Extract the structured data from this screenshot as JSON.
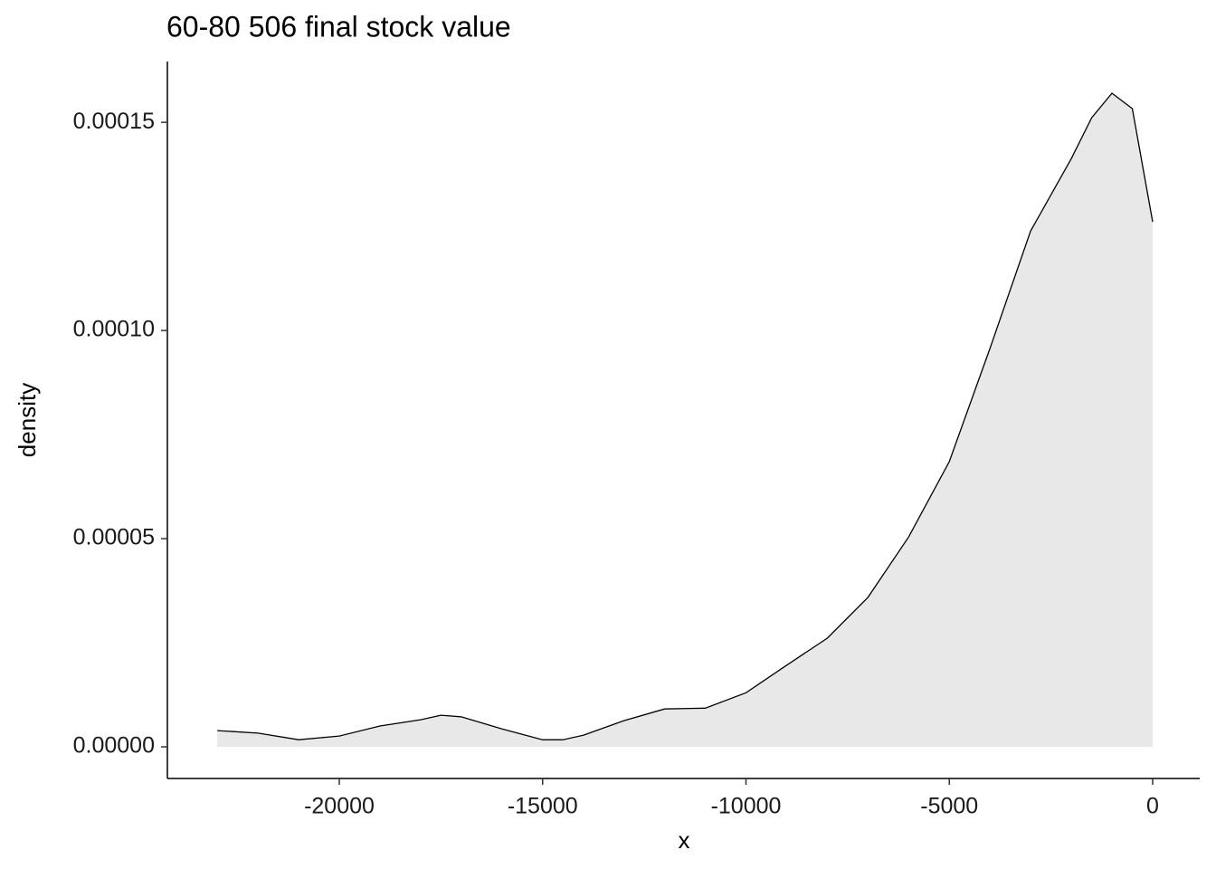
{
  "chart_data": {
    "type": "density",
    "title": "60-80 506 final stock value",
    "x_label": "x",
    "y_label": "density",
    "x": [
      -23000,
      -22000,
      -21000,
      -20000,
      -19000,
      -18000,
      -17500,
      -17000,
      -16000,
      -15000,
      -14500,
      -14000,
      -13000,
      -12000,
      -11000,
      -10000,
      -9000,
      -8000,
      -7000,
      -6000,
      -5000,
      -4000,
      -3000,
      -2000,
      -1500,
      -1000,
      -500,
      0
    ],
    "values": [
      3.9e-06,
      3.3e-06,
      1.7e-06,
      2.6e-06,
      5e-06,
      6.5e-06,
      7.6e-06,
      7.2e-06,
      4.3e-06,
      1.7e-06,
      1.7e-06,
      2.8e-06,
      6.3e-06,
      9.1e-06,
      9.3e-06,
      1.3e-05,
      1.96e-05,
      2.61e-05,
      3.59e-05,
      5.04e-05,
      6.85e-05,
      9.57e-05,
      0.0001239,
      0.0001413,
      0.0001511,
      0.000157,
      0.0001533,
      0.0001261
    ],
    "fill": "#e8e8e8",
    "color": "#000000",
    "xlim": [
      -24227,
      1157
    ],
    "xticks": [
      -20000,
      -15000,
      -10000,
      -5000,
      0
    ],
    "ylim": [
      -7.6e-06,
      0.0001646
    ],
    "yticks": [
      {
        "value": 0,
        "label": "0.00000"
      },
      {
        "value": 5e-05,
        "label": "0.00005"
      },
      {
        "value": 0.0001,
        "label": "0.00010"
      },
      {
        "value": 0.00015,
        "label": "0.00015"
      }
    ]
  }
}
